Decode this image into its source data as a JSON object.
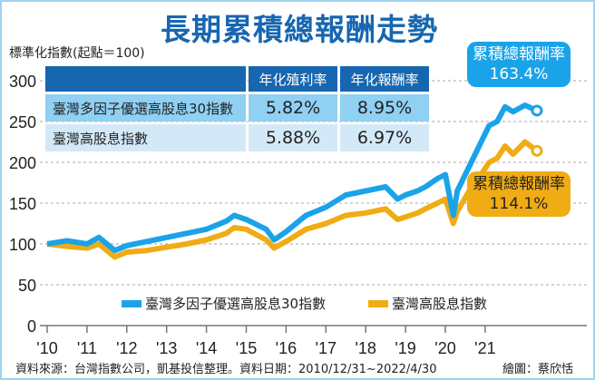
{
  "title": "長期累積總報酬走勢",
  "chart_data": {
    "type": "line",
    "title": "長期累積總報酬走勢",
    "ylabel": "標準化指數(起點＝100)",
    "ylim": [
      0,
      300
    ],
    "yticks": [
      "0",
      "50",
      "100",
      "150",
      "200",
      "250",
      "300"
    ],
    "xticks": [
      "'10",
      "'11",
      "'12",
      "'13",
      "'14",
      "'15",
      "'16",
      "'17",
      "'18",
      "'19",
      "'20",
      "'21"
    ],
    "grid": "horizontal dashed",
    "legend_placement": "bottom",
    "x": [
      2010,
      2010.5,
      2011,
      2011.3,
      2011.7,
      2012,
      2012.5,
      2013,
      2013.5,
      2014,
      2014.5,
      2014.7,
      2015,
      2015.5,
      2015.7,
      2016,
      2016.5,
      2017,
      2017.5,
      2018,
      2018.5,
      2018.8,
      2019,
      2019.3,
      2019.5,
      2019.8,
      2020,
      2020.2,
      2020.3,
      2020.6,
      2020.9,
      2021.1,
      2021.3,
      2021.5,
      2021.7,
      2022,
      2022.3
    ],
    "series": [
      {
        "name": "臺灣多因子優選高股息30指數",
        "color": "#1aa3e8",
        "values": [
          100,
          104,
          100,
          108,
          92,
          98,
          103,
          108,
          113,
          118,
          128,
          135,
          130,
          118,
          105,
          115,
          135,
          145,
          160,
          165,
          170,
          155,
          160,
          165,
          170,
          180,
          185,
          135,
          165,
          195,
          225,
          245,
          250,
          268,
          262,
          270,
          263.4
        ]
      },
      {
        "name": "臺灣高股息指數",
        "color": "#f0ac14",
        "values": [
          100,
          97,
          95,
          100,
          84,
          90,
          92,
          96,
          100,
          105,
          113,
          120,
          118,
          105,
          95,
          103,
          118,
          125,
          135,
          138,
          143,
          130,
          133,
          138,
          143,
          150,
          155,
          125,
          140,
          165,
          185,
          200,
          205,
          220,
          210,
          225,
          214.1
        ]
      }
    ]
  },
  "table": {
    "headers": [
      "",
      "年化殖利率",
      "年化報酬率"
    ],
    "rows": [
      {
        "name": "臺灣多因子優選高股息30指數",
        "yield": "5.82%",
        "return": "8.95%"
      },
      {
        "name": "臺灣高股息指數",
        "yield": "5.88%",
        "return": "6.97%"
      }
    ]
  },
  "callouts": [
    {
      "label": "累積總報酬率",
      "value": "163.4%"
    },
    {
      "label": "累積總報酬率",
      "value": "114.1%"
    }
  ],
  "source": "資料來源：台灣指數公司，凱基投信整理。資料日期：2010/12/31~2022/4/30",
  "credit": "繪圖：蔡欣恬"
}
